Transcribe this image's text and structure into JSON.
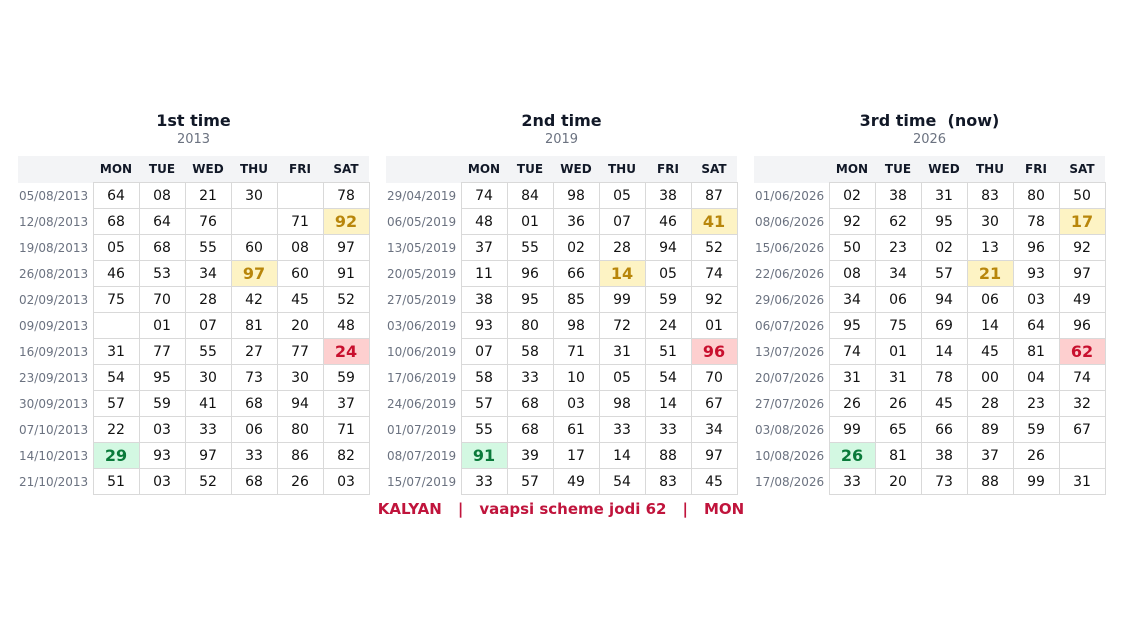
{
  "days": [
    "MON",
    "TUE",
    "WED",
    "THU",
    "FRI",
    "SAT"
  ],
  "panels": [
    {
      "title": "1st time",
      "year": "2013",
      "rows": [
        {
          "date": "05/08/2013",
          "cells": [
            "64",
            "08",
            "21",
            "30",
            null,
            "78"
          ]
        },
        {
          "date": "12/08/2013",
          "cells": [
            "68",
            "64",
            "76",
            null,
            "71",
            "92"
          ]
        },
        {
          "date": "19/08/2013",
          "cells": [
            "05",
            "68",
            "55",
            "60",
            "08",
            "97"
          ]
        },
        {
          "date": "26/08/2013",
          "cells": [
            "46",
            "53",
            "34",
            "97",
            "60",
            "91"
          ]
        },
        {
          "date": "02/09/2013",
          "cells": [
            "75",
            "70",
            "28",
            "42",
            "45",
            "52"
          ]
        },
        {
          "date": "09/09/2013",
          "cells": [
            null,
            "01",
            "07",
            "81",
            "20",
            "48"
          ]
        },
        {
          "date": "16/09/2013",
          "cells": [
            "31",
            "77",
            "55",
            "27",
            "77",
            "24"
          ]
        },
        {
          "date": "23/09/2013",
          "cells": [
            "54",
            "95",
            "30",
            "73",
            "30",
            "59"
          ]
        },
        {
          "date": "30/09/2013",
          "cells": [
            "57",
            "59",
            "41",
            "68",
            "94",
            "37"
          ]
        },
        {
          "date": "07/10/2013",
          "cells": [
            "22",
            "03",
            "33",
            "06",
            "80",
            "71"
          ]
        },
        {
          "date": "14/10/2013",
          "cells": [
            "29",
            "93",
            "97",
            "33",
            "86",
            "82"
          ]
        },
        {
          "date": "21/10/2013",
          "cells": [
            "51",
            "03",
            "52",
            "68",
            "26",
            "03"
          ]
        }
      ],
      "highlights": [
        {
          "row": 1,
          "col": 5,
          "tone": "yellow"
        },
        {
          "row": 3,
          "col": 3,
          "tone": "yellow"
        },
        {
          "row": 6,
          "col": 5,
          "tone": "red"
        },
        {
          "row": 10,
          "col": 0,
          "tone": "green"
        }
      ]
    },
    {
      "title": "2nd time",
      "year": "2019",
      "rows": [
        {
          "date": "29/04/2019",
          "cells": [
            "74",
            "84",
            "98",
            "05",
            "38",
            "87"
          ]
        },
        {
          "date": "06/05/2019",
          "cells": [
            "48",
            "01",
            "36",
            "07",
            "46",
            "41"
          ]
        },
        {
          "date": "13/05/2019",
          "cells": [
            "37",
            "55",
            "02",
            "28",
            "94",
            "52"
          ]
        },
        {
          "date": "20/05/2019",
          "cells": [
            "11",
            "96",
            "66",
            "14",
            "05",
            "74"
          ]
        },
        {
          "date": "27/05/2019",
          "cells": [
            "38",
            "95",
            "85",
            "99",
            "59",
            "92"
          ]
        },
        {
          "date": "03/06/2019",
          "cells": [
            "93",
            "80",
            "98",
            "72",
            "24",
            "01"
          ]
        },
        {
          "date": "10/06/2019",
          "cells": [
            "07",
            "58",
            "71",
            "31",
            "51",
            "96"
          ]
        },
        {
          "date": "17/06/2019",
          "cells": [
            "58",
            "33",
            "10",
            "05",
            "54",
            "70"
          ]
        },
        {
          "date": "24/06/2019",
          "cells": [
            "57",
            "68",
            "03",
            "98",
            "14",
            "67"
          ]
        },
        {
          "date": "01/07/2019",
          "cells": [
            "55",
            "68",
            "61",
            "33",
            "33",
            "34"
          ]
        },
        {
          "date": "08/07/2019",
          "cells": [
            "91",
            "39",
            "17",
            "14",
            "88",
            "97"
          ]
        },
        {
          "date": "15/07/2019",
          "cells": [
            "33",
            "57",
            "49",
            "54",
            "83",
            "45"
          ]
        }
      ],
      "highlights": [
        {
          "row": 1,
          "col": 5,
          "tone": "yellow"
        },
        {
          "row": 3,
          "col": 3,
          "tone": "yellow"
        },
        {
          "row": 6,
          "col": 5,
          "tone": "red"
        },
        {
          "row": 10,
          "col": 0,
          "tone": "green"
        }
      ]
    },
    {
      "title": "3rd time  (now)",
      "year": "2026",
      "rows": [
        {
          "date": "01/06/2026",
          "cells": [
            "02",
            "38",
            "31",
            "83",
            "80",
            "50"
          ]
        },
        {
          "date": "08/06/2026",
          "cells": [
            "92",
            "62",
            "95",
            "30",
            "78",
            "17"
          ]
        },
        {
          "date": "15/06/2026",
          "cells": [
            "50",
            "23",
            "02",
            "13",
            "96",
            "92"
          ]
        },
        {
          "date": "22/06/2026",
          "cells": [
            "08",
            "34",
            "57",
            "21",
            "93",
            "97"
          ]
        },
        {
          "date": "29/06/2026",
          "cells": [
            "34",
            "06",
            "94",
            "06",
            "03",
            "49"
          ]
        },
        {
          "date": "06/07/2026",
          "cells": [
            "95",
            "75",
            "69",
            "14",
            "64",
            "96"
          ]
        },
        {
          "date": "13/07/2026",
          "cells": [
            "74",
            "01",
            "14",
            "45",
            "81",
            "62"
          ]
        },
        {
          "date": "20/07/2026",
          "cells": [
            "31",
            "31",
            "78",
            "00",
            "04",
            "74"
          ]
        },
        {
          "date": "27/07/2026",
          "cells": [
            "26",
            "26",
            "45",
            "28",
            "23",
            "32"
          ]
        },
        {
          "date": "03/08/2026",
          "cells": [
            "99",
            "65",
            "66",
            "89",
            "59",
            "67"
          ]
        },
        {
          "date": "10/08/2026",
          "cells": [
            "26",
            "81",
            "38",
            "37",
            "26",
            null
          ]
        },
        {
          "date": "17/08/2026",
          "cells": [
            "33",
            "20",
            "73",
            "88",
            "99",
            "31"
          ]
        }
      ],
      "highlights": [
        {
          "row": 1,
          "col": 5,
          "tone": "yellow"
        },
        {
          "row": 3,
          "col": 3,
          "tone": "yellow"
        },
        {
          "row": 6,
          "col": 5,
          "tone": "red"
        },
        {
          "row": 10,
          "col": 0,
          "tone": "green"
        }
      ]
    }
  ],
  "footer": {
    "parts": [
      "KALYAN",
      "vaapsi scheme jodi 62",
      "MON"
    ],
    "separator": "|"
  }
}
